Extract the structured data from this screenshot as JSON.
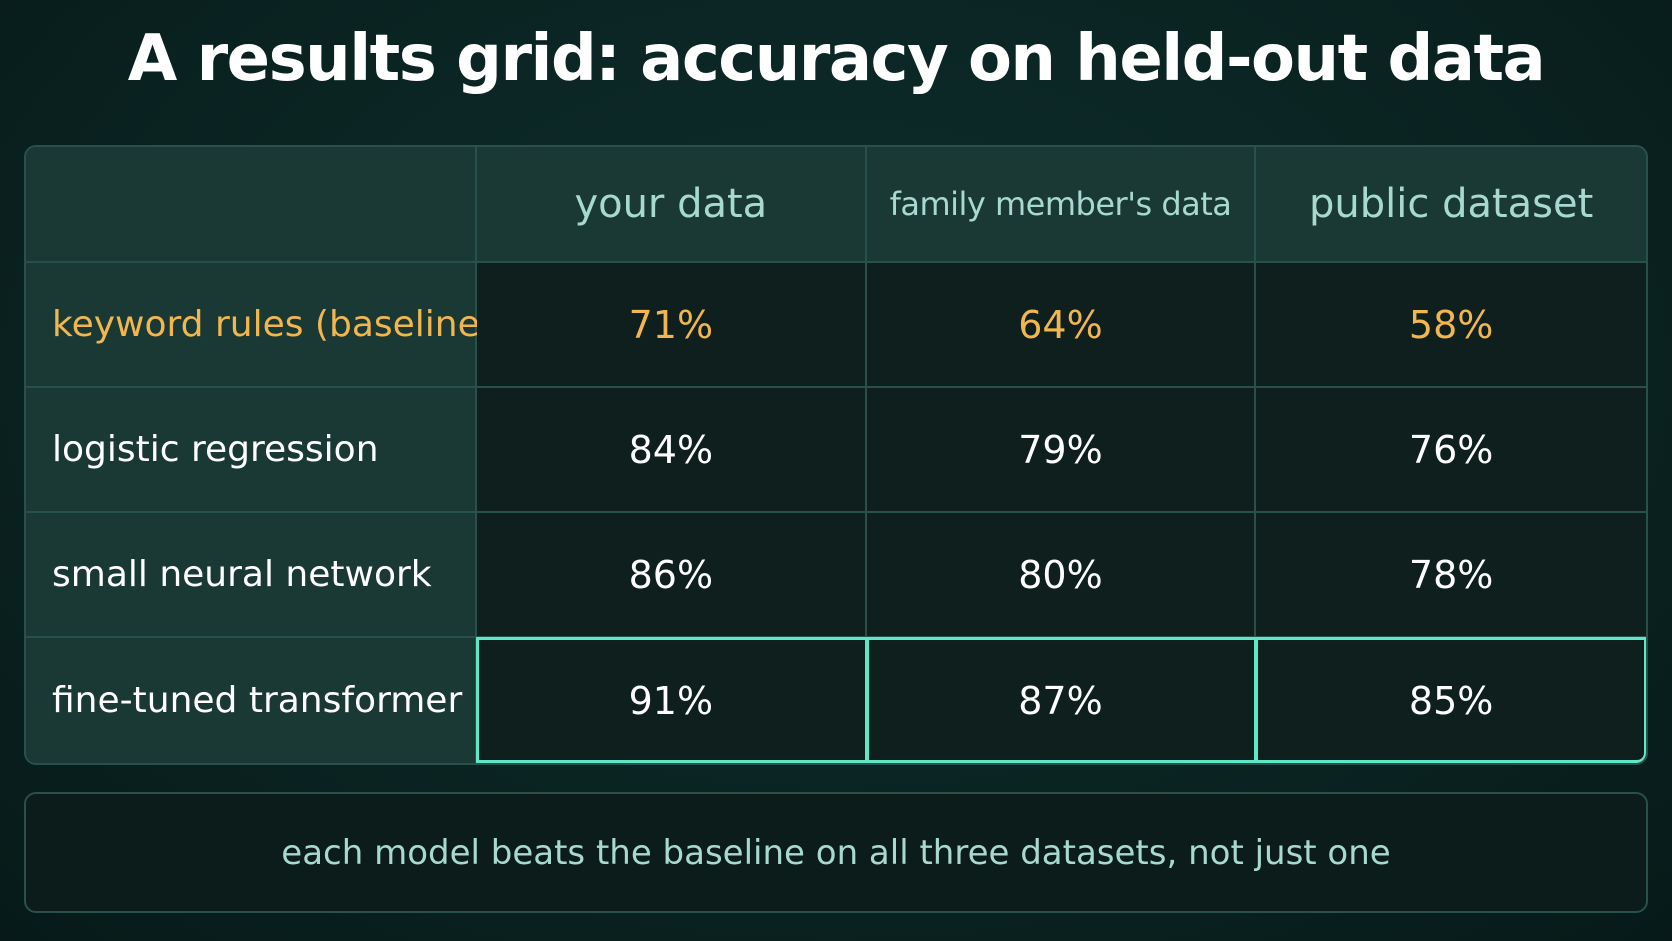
{
  "title": "A results grid: accuracy on held-out data",
  "chart_data": {
    "type": "table",
    "title": "A results grid: accuracy on held-out data",
    "columns": [
      "your data",
      "family member's data",
      "public dataset"
    ],
    "rows": [
      {
        "label": "keyword rules (baseline)",
        "values": [
          "71%",
          "64%",
          "58%"
        ],
        "accent": true
      },
      {
        "label": "logistic regression",
        "values": [
          "84%",
          "79%",
          "76%"
        ],
        "accent": false
      },
      {
        "label": "small neural network",
        "values": [
          "86%",
          "80%",
          "78%"
        ],
        "accent": false
      },
      {
        "label": "fine-tuned transformer",
        "values": [
          "91%",
          "87%",
          "85%"
        ],
        "accent": false,
        "highlighted": true
      }
    ]
  },
  "note": "each model beats the baseline on all three datasets, not just one",
  "colors": {
    "accent": "#f1b64e",
    "highlight": "#5ee8c6",
    "header_text": "#a8d9cf"
  }
}
